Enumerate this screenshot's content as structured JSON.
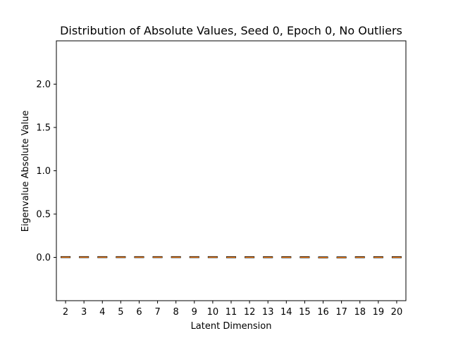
{
  "chart_data": {
    "type": "box",
    "title": "Distribution of Absolute Values, Seed 0, Epoch 0, No Outliers",
    "xlabel": "Latent Dimension",
    "ylabel": "Eigenvalue Absolute Value",
    "categories": [
      "2",
      "3",
      "4",
      "5",
      "6",
      "7",
      "8",
      "9",
      "10",
      "11",
      "12",
      "13",
      "14",
      "15",
      "16",
      "17",
      "18",
      "19",
      "20"
    ],
    "ylim": [
      -0.5,
      2.5
    ],
    "yticks": [
      0.0,
      0.5,
      1.0,
      1.5,
      2.0
    ],
    "ytick_labels": [
      "0.0",
      "0.5",
      "1.0",
      "1.5",
      "2.0"
    ],
    "boxes": [
      {
        "q1": 0.0,
        "median": 0.002,
        "q3": 0.003
      },
      {
        "q1": 0.0,
        "median": 0.002,
        "q3": 0.003
      },
      {
        "q1": 0.0,
        "median": 0.002,
        "q3": 0.003
      },
      {
        "q1": 0.0,
        "median": 0.002,
        "q3": 0.003
      },
      {
        "q1": 0.0,
        "median": 0.002,
        "q3": 0.003
      },
      {
        "q1": 0.0,
        "median": 0.002,
        "q3": 0.003
      },
      {
        "q1": 0.0,
        "median": 0.002,
        "q3": 0.003
      },
      {
        "q1": 0.0,
        "median": 0.002,
        "q3": 0.003
      },
      {
        "q1": 0.0,
        "median": 0.002,
        "q3": 0.003
      },
      {
        "q1": 0.0,
        "median": 0.001,
        "q3": 0.002
      },
      {
        "q1": 0.0,
        "median": 0.001,
        "q3": 0.002
      },
      {
        "q1": 0.0,
        "median": 0.001,
        "q3": 0.002
      },
      {
        "q1": 0.0,
        "median": 0.001,
        "q3": 0.002
      },
      {
        "q1": 0.0,
        "median": 0.001,
        "q3": 0.002
      },
      {
        "q1": -0.002,
        "median": -0.001,
        "q3": 0.0
      },
      {
        "q1": -0.002,
        "median": -0.001,
        "q3": 0.0
      },
      {
        "q1": 0.0,
        "median": 0.001,
        "q3": 0.002
      },
      {
        "q1": 0.0,
        "median": 0.001,
        "q3": 0.002
      },
      {
        "q1": 0.0,
        "median": 0.001,
        "q3": 0.002
      }
    ],
    "colors": {
      "box": "#000000",
      "median": "#ff7f0e",
      "axes": "#000000"
    },
    "grid": false,
    "legend": false
  }
}
